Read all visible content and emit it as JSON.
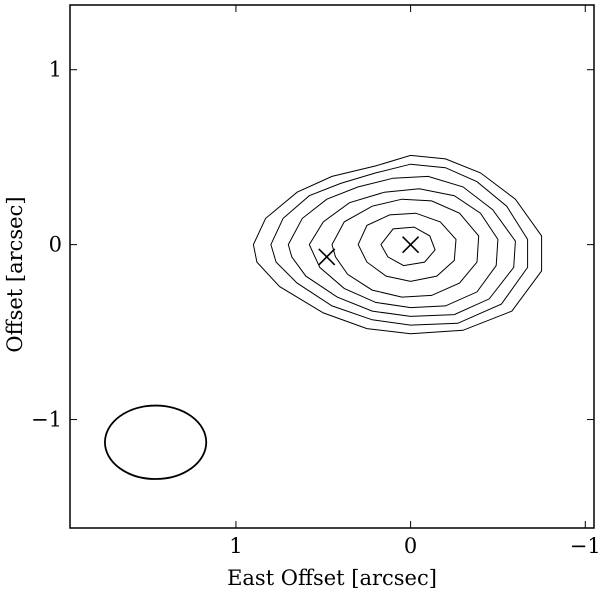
{
  "chart_data": {
    "type": "contour",
    "title": "",
    "xlabel": "East Offset [arcsec]",
    "ylabel": "Offset [arcsec]",
    "xlim": [
      1.95,
      -1.05
    ],
    "ylim": [
      -1.62,
      1.37
    ],
    "x_ticks": [
      {
        "value": 1,
        "label": "1"
      },
      {
        "value": 0,
        "label": "0"
      },
      {
        "value": -1,
        "label": "−1"
      }
    ],
    "y_ticks": [
      {
        "value": 1,
        "label": "1"
      },
      {
        "value": 0,
        "label": "0"
      },
      {
        "value": -1,
        "label": "−1"
      }
    ],
    "grid": false,
    "contours": [
      {
        "level": 1,
        "points": [
          [
            0.9,
            0.0
          ],
          [
            0.83,
            0.15
          ],
          [
            0.65,
            0.3
          ],
          [
            0.45,
            0.39
          ],
          [
            0.2,
            0.45
          ],
          [
            0.0,
            0.51
          ],
          [
            -0.2,
            0.49
          ],
          [
            -0.4,
            0.41
          ],
          [
            -0.6,
            0.26
          ],
          [
            -0.75,
            0.05
          ],
          [
            -0.75,
            -0.15
          ],
          [
            -0.58,
            -0.38
          ],
          [
            -0.3,
            -0.49
          ],
          [
            0.0,
            -0.51
          ],
          [
            0.25,
            -0.48
          ],
          [
            0.5,
            -0.39
          ],
          [
            0.75,
            -0.24
          ],
          [
            0.88,
            -0.1
          ]
        ]
      },
      {
        "level": 2,
        "points": [
          [
            0.8,
            0.0
          ],
          [
            0.73,
            0.15
          ],
          [
            0.58,
            0.28
          ],
          [
            0.4,
            0.35
          ],
          [
            0.2,
            0.41
          ],
          [
            0.0,
            0.46
          ],
          [
            -0.2,
            0.44
          ],
          [
            -0.38,
            0.36
          ],
          [
            -0.55,
            0.22
          ],
          [
            -0.67,
            0.03
          ],
          [
            -0.67,
            -0.13
          ],
          [
            -0.52,
            -0.34
          ],
          [
            -0.27,
            -0.45
          ],
          [
            0.0,
            -0.46
          ],
          [
            0.22,
            -0.43
          ],
          [
            0.45,
            -0.35
          ],
          [
            0.65,
            -0.22
          ],
          [
            0.77,
            -0.1
          ]
        ]
      },
      {
        "level": 3,
        "points": [
          [
            0.7,
            0.0
          ],
          [
            0.62,
            0.15
          ],
          [
            0.48,
            0.26
          ],
          [
            0.3,
            0.33
          ],
          [
            0.1,
            0.38
          ],
          [
            -0.1,
            0.39
          ],
          [
            -0.3,
            0.33
          ],
          [
            -0.47,
            0.2
          ],
          [
            -0.6,
            0.02
          ],
          [
            -0.59,
            -0.13
          ],
          [
            -0.45,
            -0.31
          ],
          [
            -0.25,
            -0.4
          ],
          [
            0.0,
            -0.41
          ],
          [
            0.22,
            -0.38
          ],
          [
            0.42,
            -0.3
          ],
          [
            0.6,
            -0.18
          ],
          [
            0.68,
            -0.07
          ]
        ]
      },
      {
        "level": 4,
        "points": [
          [
            0.58,
            0.0
          ],
          [
            0.5,
            0.13
          ],
          [
            0.35,
            0.24
          ],
          [
            0.15,
            0.3
          ],
          [
            -0.05,
            0.32
          ],
          [
            -0.25,
            0.28
          ],
          [
            -0.4,
            0.18
          ],
          [
            -0.5,
            0.03
          ],
          [
            -0.49,
            -0.12
          ],
          [
            -0.38,
            -0.27
          ],
          [
            -0.2,
            -0.35
          ],
          [
            0.0,
            -0.36
          ],
          [
            0.2,
            -0.33
          ],
          [
            0.38,
            -0.25
          ],
          [
            0.52,
            -0.13
          ]
        ]
      },
      {
        "level": 5,
        "points": [
          [
            0.45,
            0.0
          ],
          [
            0.38,
            0.13
          ],
          [
            0.22,
            0.22
          ],
          [
            0.05,
            0.26
          ],
          [
            -0.12,
            0.25
          ],
          [
            -0.28,
            0.18
          ],
          [
            -0.39,
            0.05
          ],
          [
            -0.38,
            -0.1
          ],
          [
            -0.28,
            -0.22
          ],
          [
            -0.12,
            -0.29
          ],
          [
            0.05,
            -0.3
          ],
          [
            0.22,
            -0.26
          ],
          [
            0.36,
            -0.17
          ],
          [
            0.43,
            -0.07
          ]
        ]
      },
      {
        "level": 6,
        "points": [
          [
            0.3,
            0.0
          ],
          [
            0.25,
            0.11
          ],
          [
            0.12,
            0.17
          ],
          [
            -0.03,
            0.18
          ],
          [
            -0.17,
            0.13
          ],
          [
            -0.26,
            0.03
          ],
          [
            -0.25,
            -0.09
          ],
          [
            -0.15,
            -0.18
          ],
          [
            0.0,
            -0.21
          ],
          [
            0.14,
            -0.18
          ],
          [
            0.25,
            -0.1
          ]
        ]
      },
      {
        "level": 7,
        "points": [
          [
            0.17,
            0.0
          ],
          [
            0.1,
            0.09
          ],
          [
            -0.02,
            0.1
          ],
          [
            -0.11,
            0.05
          ],
          [
            -0.14,
            -0.03
          ],
          [
            -0.08,
            -0.1
          ],
          [
            0.04,
            -0.12
          ],
          [
            0.13,
            -0.07
          ]
        ]
      }
    ],
    "markers": [
      {
        "symbol": "x",
        "x": 0.0,
        "y": 0.0
      },
      {
        "symbol": "x",
        "x": 0.48,
        "y": -0.07
      }
    ],
    "beam": {
      "x": 1.46,
      "y": -1.13,
      "major": 0.58,
      "minor": 0.42
    }
  }
}
